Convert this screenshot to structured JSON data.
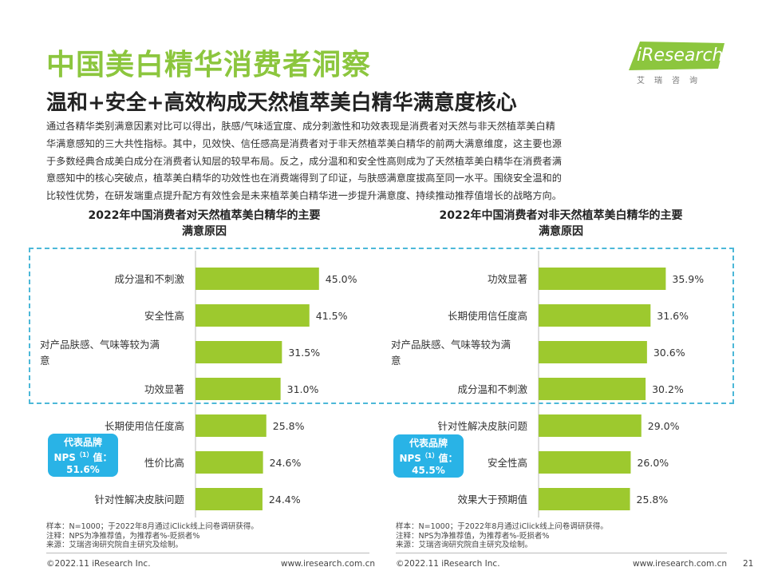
{
  "title": "中国美白精华消费者洞察",
  "subtitle": "温和+安全+高效构成天然植萃美白精华满意度核心",
  "logo": {
    "brand": "iResearch",
    "sub": "艾瑞咨询"
  },
  "body_lines": [
    "通过各精华类别满意因素对比可以得出，肤感/气味适宜度、成分刺激性和功效表现是消费者对天然与非天然植萃美白精",
    "华满意感知的三大共性指标。其中，见效快、信任感高是消费者对于非天然植萃美白精华的前两大满意维度，这主要也源",
    "于多数经典合成美白成分在消费者认知层的较早布局。反之，成分温和和安全性高则成为了天然植萃美白精华在消费者满",
    "意感知中的核心突破点，植萃美白精华的功效性也在消费端得到了印证，与肤感满意度拔高至同一水平。围绕安全温和的",
    "比较性优势，在研发端重点提升配方有效性会是未来植萃美白精华进一步提升满意度、持续推动推荐值增长的战略方向。"
  ],
  "colors": {
    "bar": "#9dc92e",
    "title": "#8cc63e",
    "accent": "#29b3e6",
    "highlight": "#4cb8d8"
  },
  "chart_data": [
    {
      "type": "bar",
      "orientation": "horizontal",
      "title_lines": [
        "2022年中国消费者对天然植萃美白精华的主要",
        "满意原因"
      ],
      "categories": [
        "成分温和不刺激",
        "安全性高",
        "对产品肤感、气味等较为满意",
        "功效显著",
        "长期使用信任度高",
        "性价比高",
        "针对性解决皮肤问题"
      ],
      "category_lines": [
        [
          "成分温和不刺激"
        ],
        [
          "安全性高"
        ],
        [
          "对产品肤感、气味等较为满",
          "意"
        ],
        [
          "功效显著"
        ],
        [
          "长期使用信任度高"
        ],
        [
          "性价比高"
        ],
        [
          "针对性解决皮肤问题"
        ]
      ],
      "values": [
        45.0,
        41.5,
        31.5,
        31.0,
        25.8,
        24.6,
        24.4
      ],
      "value_labels": [
        "45.0%",
        "41.5%",
        "31.5%",
        "31.0%",
        "25.8%",
        "24.6%",
        "24.4%"
      ],
      "unit": "%",
      "xlim": [
        0,
        100
      ],
      "grid": false,
      "highlighted_top": 4,
      "nps_badge": {
        "line1": "代表品牌",
        "line2_pre": "NPS",
        "line2_sup": "（1）",
        "line2_post": "值：",
        "value": "51.6%"
      }
    },
    {
      "type": "bar",
      "orientation": "horizontal",
      "title_lines": [
        "2022年中国消费者对非天然植萃美白精华的主要",
        "满意原因"
      ],
      "categories": [
        "功效显著",
        "长期使用信任度高",
        "对产品肤感、气味等较为满意",
        "成分温和不刺激",
        "针对性解决皮肤问题",
        "安全性高",
        "效果大于预期值"
      ],
      "category_lines": [
        [
          "功效显著"
        ],
        [
          "长期使用信任度高"
        ],
        [
          "对产品肤感、气味等较为满",
          "意"
        ],
        [
          "成分温和不刺激"
        ],
        [
          "针对性解决皮肤问题"
        ],
        [
          "安全性高"
        ],
        [
          "效果大于预期值"
        ]
      ],
      "values": [
        35.9,
        31.6,
        30.6,
        30.2,
        29.0,
        26.0,
        25.8
      ],
      "value_labels": [
        "35.9%",
        "31.6%",
        "30.6%",
        "30.2%",
        "29.0%",
        "26.0%",
        "25.8%"
      ],
      "unit": "%",
      "xlim": [
        0,
        100
      ],
      "grid": false,
      "highlighted_top": 4,
      "nps_badge": {
        "line1": "代表品牌",
        "line2_pre": "NPS",
        "line2_sup": "（1）",
        "line2_post": "值：",
        "value": "45.5%"
      }
    }
  ],
  "notes": [
    "样本：N=1000；于2022年8月通过iClick线上问卷调研获得。",
    "注释：NPS为净推荐值，为推荐者%-贬损者%",
    "来源：艾瑞咨询研究院自主研究及绘制。"
  ],
  "footer": {
    "left_copyright": "©2022.11 iResearch Inc.",
    "left_site": "www.iresearch.com.cn",
    "right_copyright": "©2022.11 iResearch Inc.",
    "right_site": "www.iresearch.com.cn",
    "page_number": "21"
  }
}
